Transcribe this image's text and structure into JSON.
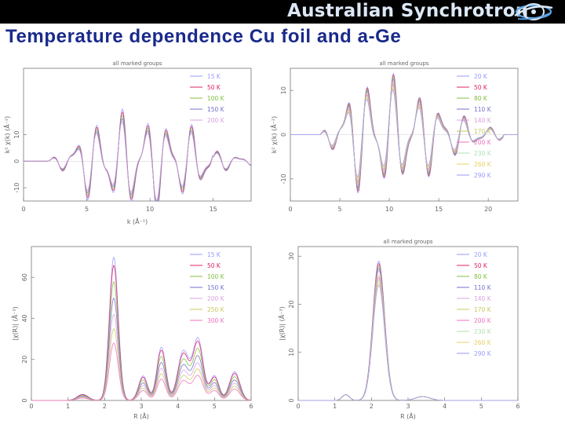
{
  "header": {
    "brand": "Australian Synchrotron",
    "logo_icon": "synchrotron-logo-icon",
    "title": "Temperature dependence Cu foil and a-Ge"
  },
  "colors": {
    "banner": "#000000",
    "brand_text": "#dce8f5",
    "title_text": "#1a2a8a",
    "series": [
      "#9a9aff",
      "#e0206a",
      "#80c040",
      "#7070d0",
      "#d8a0e0",
      "#c8c860",
      "#f070c0",
      "#b0e0b0",
      "#e8d060"
    ]
  },
  "chart_data": [
    {
      "type": "line",
      "title": "all marked groups",
      "xlabel": "k (Å⁻¹)",
      "ylabel": "k² χ(k) (Å⁻²)",
      "xlim": [
        0,
        18
      ],
      "ylim": [
        -15,
        35
      ],
      "xticks": [
        0,
        5,
        10,
        15
      ],
      "yticks": [
        -10,
        0,
        10
      ],
      "legend_position": "top-right",
      "series": [
        {
          "name": "15 K"
        },
        {
          "name": "50 K"
        },
        {
          "name": "100 K"
        },
        {
          "name": "150 K"
        },
        {
          "name": "200 K"
        }
      ],
      "notes": "Cu foil EXAFS k-space, oscillation amplitude growing to ~±25 near k≈9, multiple overlapping temperature curves"
    },
    {
      "type": "line",
      "title": "all marked groups",
      "xlabel": "",
      "ylabel": "k² χ(k) (Å⁻²)",
      "xlim": [
        0,
        23
      ],
      "ylim": [
        -15,
        15
      ],
      "xticks": [
        0,
        5,
        10,
        15,
        20
      ],
      "yticks": [
        -10,
        0,
        10
      ],
      "legend_position": "top-right",
      "series": [
        {
          "name": "20 K"
        },
        {
          "name": "50 K"
        },
        {
          "name": "80 K"
        },
        {
          "name": "110 K"
        },
        {
          "name": "140 K"
        },
        {
          "name": "170 K"
        },
        {
          "name": "200 K"
        },
        {
          "name": "230 K"
        },
        {
          "name": "260 K"
        },
        {
          "name": "290 K"
        }
      ],
      "notes": "a-Ge EXAFS k-space, large oscillations ~±12 near k≈7, damping at higher k"
    },
    {
      "type": "line",
      "title": "",
      "xlabel": "R (Å)",
      "ylabel": "|χ(R)| (Å⁻³)",
      "xlim": [
        0,
        6
      ],
      "ylim": [
        0,
        75
      ],
      "xticks": [
        0,
        1,
        2,
        3,
        4,
        5,
        6
      ],
      "yticks": [
        0,
        20,
        40,
        60
      ],
      "legend_position": "top-right",
      "series": [
        {
          "name": "15 K",
          "peak_r2_2": 70
        },
        {
          "name": "50 K",
          "peak_r2_2": 66
        },
        {
          "name": "100 K",
          "peak_r2_2": 58
        },
        {
          "name": "150 K",
          "peak_r2_2": 50
        },
        {
          "name": "200 K",
          "peak_r2_2": 42
        },
        {
          "name": "250 K",
          "peak_r2_2": 35
        },
        {
          "name": "300 K",
          "peak_r2_2": 28
        }
      ],
      "notes": "Cu foil Fourier transform, main peak near R≈2.2 Å, secondary peaks near 3.3, 4.5, 5.5 Å"
    },
    {
      "type": "line",
      "title": "all marked groups",
      "xlabel": "R (Å)",
      "ylabel": "|χ(R)| (Å⁻³)",
      "xlim": [
        0,
        6
      ],
      "ylim": [
        0,
        32
      ],
      "xticks": [
        0,
        1,
        2,
        3,
        4,
        5,
        6
      ],
      "yticks": [
        0,
        10,
        20,
        30
      ],
      "legend_position": "top-right",
      "series": [
        {
          "name": "20 K",
          "peak_r2_2": 29
        },
        {
          "name": "50 K",
          "peak_r2_2": 28.5
        },
        {
          "name": "80 K",
          "peak_r2_2": 28
        },
        {
          "name": "110 K",
          "peak_r2_2": 27.5
        },
        {
          "name": "140 K",
          "peak_r2_2": 27
        },
        {
          "name": "170 K",
          "peak_r2_2": 26
        },
        {
          "name": "200 K",
          "peak_r2_2": 25.5
        },
        {
          "name": "230 K",
          "peak_r2_2": 25
        },
        {
          "name": "260 K",
          "peak_r2_2": 24.5
        },
        {
          "name": "290 K",
          "peak_r2_2": 24
        }
      ],
      "notes": "a-Ge Fourier transform, single dominant peak near R≈2.2 Å"
    }
  ]
}
